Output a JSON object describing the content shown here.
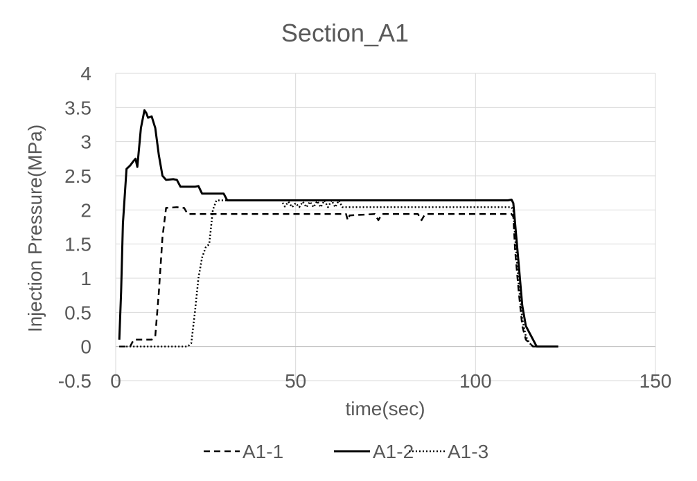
{
  "chart_data": {
    "type": "line",
    "title": "Section_A1",
    "xlabel": "time(sec)",
    "ylabel": "Injection Pressure(MPa)",
    "xlim": [
      0,
      150
    ],
    "ylim": [
      -0.5,
      4
    ],
    "x_ticks": [
      "0",
      "50",
      "100",
      "150"
    ],
    "y_ticks": [
      "-0.5",
      "0",
      "0.5",
      "1",
      "1.5",
      "2",
      "2.5",
      "3",
      "3.5",
      "4"
    ],
    "grid": true,
    "legend_position": "bottom",
    "series": [
      {
        "name": "A1-1",
        "style": "dashed",
        "color": "#000000",
        "points": [
          [
            1,
            0
          ],
          [
            4,
            0
          ],
          [
            5,
            0.1
          ],
          [
            6,
            0.1
          ],
          [
            10,
            0.1
          ],
          [
            11,
            0.15
          ],
          [
            12,
            0.8
          ],
          [
            13,
            1.6
          ],
          [
            14,
            2.03
          ],
          [
            17,
            2.04
          ],
          [
            19,
            2.03
          ],
          [
            20,
            1.94
          ],
          [
            40,
            1.94
          ],
          [
            64,
            1.94
          ],
          [
            64.5,
            1.85
          ],
          [
            65,
            1.92
          ],
          [
            72,
            1.94
          ],
          [
            73,
            1.85
          ],
          [
            74,
            1.94
          ],
          [
            84,
            1.94
          ],
          [
            85,
            1.85
          ],
          [
            86,
            1.94
          ],
          [
            109,
            1.94
          ],
          [
            110,
            1.94
          ],
          [
            110.5,
            1.9
          ],
          [
            111,
            1.4
          ],
          [
            112,
            0.8
          ],
          [
            113,
            0.3
          ],
          [
            114,
            0.1
          ],
          [
            115,
            0.05
          ],
          [
            116,
            0
          ],
          [
            117,
            0
          ],
          [
            123,
            0
          ]
        ]
      },
      {
        "name": "A1-2",
        "style": "solid",
        "color": "#000000",
        "points": [
          [
            1,
            0.1
          ],
          [
            1.5,
            0.8
          ],
          [
            2,
            1.8
          ],
          [
            3,
            2.6
          ],
          [
            4,
            2.65
          ],
          [
            5,
            2.72
          ],
          [
            5.5,
            2.75
          ],
          [
            6,
            2.63
          ],
          [
            7,
            3.2
          ],
          [
            8,
            3.46
          ],
          [
            8.5,
            3.42
          ],
          [
            9,
            3.35
          ],
          [
            10,
            3.37
          ],
          [
            11,
            3.2
          ],
          [
            12,
            2.8
          ],
          [
            13,
            2.5
          ],
          [
            14,
            2.44
          ],
          [
            16,
            2.45
          ],
          [
            17,
            2.44
          ],
          [
            18,
            2.34
          ],
          [
            20,
            2.34
          ],
          [
            22,
            2.34
          ],
          [
            23,
            2.35
          ],
          [
            24,
            2.24
          ],
          [
            28,
            2.24
          ],
          [
            30,
            2.24
          ],
          [
            31,
            2.14
          ],
          [
            50,
            2.14
          ],
          [
            80,
            2.14
          ],
          [
            109,
            2.14
          ],
          [
            110,
            2.15
          ],
          [
            110.5,
            2.1
          ],
          [
            111,
            1.8
          ],
          [
            112,
            1.2
          ],
          [
            113,
            0.6
          ],
          [
            114,
            0.3
          ],
          [
            115,
            0.2
          ],
          [
            116,
            0.1
          ],
          [
            117,
            0
          ],
          [
            118,
            0
          ],
          [
            123,
            0
          ]
        ]
      },
      {
        "name": "A1-3",
        "style": "dotted",
        "color": "#000000",
        "points": [
          [
            1,
            0
          ],
          [
            20,
            0
          ],
          [
            21,
            0.05
          ],
          [
            22,
            0.5
          ],
          [
            23,
            1.0
          ],
          [
            24,
            1.3
          ],
          [
            25,
            1.45
          ],
          [
            26,
            1.5
          ],
          [
            27,
            2.0
          ],
          [
            28,
            2.14
          ],
          [
            30,
            2.14
          ],
          [
            40,
            2.14
          ],
          [
            46,
            2.14
          ],
          [
            47,
            2.05
          ],
          [
            48,
            2.12
          ],
          [
            49,
            2.04
          ],
          [
            50,
            2.1
          ],
          [
            51,
            2.04
          ],
          [
            52,
            2.12
          ],
          [
            53,
            2.04
          ],
          [
            54,
            2.12
          ],
          [
            55,
            2.04
          ],
          [
            56,
            2.13
          ],
          [
            57,
            2.04
          ],
          [
            58,
            2.14
          ],
          [
            59,
            2.04
          ],
          [
            60,
            2.14
          ],
          [
            61,
            2.04
          ],
          [
            62,
            2.14
          ],
          [
            63,
            2.04
          ],
          [
            70,
            2.04
          ],
          [
            100,
            2.04
          ],
          [
            110,
            2.04
          ],
          [
            110.5,
            2.0
          ],
          [
            111,
            1.6
          ],
          [
            112,
            0.9
          ],
          [
            113,
            0.4
          ],
          [
            114,
            0.15
          ],
          [
            115,
            0.05
          ],
          [
            116,
            0
          ],
          [
            123,
            0
          ]
        ]
      }
    ]
  }
}
